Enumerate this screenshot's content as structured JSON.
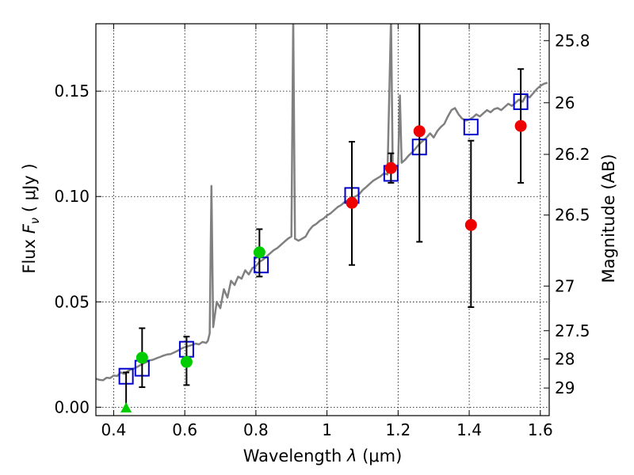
{
  "chart_data": {
    "type": "scatter",
    "title": "",
    "xlabel": {
      "prefix": "Wavelength  ",
      "symbol": "λ",
      "unit": " (μm)"
    },
    "ylabel": {
      "prefix": "Flux  ",
      "symbol": "F",
      "subscript": "ν",
      "unit": "  ( μJy )"
    },
    "ylabel_right": "Magnitude (AB)",
    "xlim": [
      0.35,
      1.625
    ],
    "ylim": [
      -0.004,
      0.182
    ],
    "grid": true,
    "x_ticks": [
      {
        "value": 0.4,
        "label": "0.4"
      },
      {
        "value": 0.6,
        "label": "0.6"
      },
      {
        "value": 0.8,
        "label": "0.8"
      },
      {
        "value": 1.0,
        "label": "1"
      },
      {
        "value": 1.2,
        "label": "1.2"
      },
      {
        "value": 1.4,
        "label": "1.4"
      },
      {
        "value": 1.6,
        "label": "1.6"
      }
    ],
    "y_ticks": [
      {
        "value": 0.0,
        "label": "0.00"
      },
      {
        "value": 0.05,
        "label": "0.05"
      },
      {
        "value": 0.1,
        "label": "0.10"
      },
      {
        "value": 0.15,
        "label": "0.15"
      }
    ],
    "right_ticks": [
      {
        "flux": 0.174,
        "label": "25.8"
      },
      {
        "flux": 0.1445,
        "label": "26"
      },
      {
        "flux": 0.12,
        "label": "26.2"
      },
      {
        "flux": 0.0912,
        "label": "26.5"
      },
      {
        "flux": 0.0575,
        "label": "27"
      },
      {
        "flux": 0.0363,
        "label": "27.5"
      },
      {
        "flux": 0.0229,
        "label": "28"
      },
      {
        "flux": 0.0091,
        "label": "29"
      }
    ],
    "series": [
      {
        "name": "SED template",
        "kind": "line",
        "color": "#808080",
        "points": [
          [
            0.35,
            0.0135
          ],
          [
            0.36,
            0.013
          ],
          [
            0.37,
            0.0128
          ],
          [
            0.38,
            0.014
          ],
          [
            0.39,
            0.0138
          ],
          [
            0.4,
            0.015
          ],
          [
            0.41,
            0.0148
          ],
          [
            0.42,
            0.0165
          ],
          [
            0.43,
            0.0158
          ],
          [
            0.44,
            0.0172
          ],
          [
            0.45,
            0.018
          ],
          [
            0.46,
            0.0185
          ],
          [
            0.47,
            0.0195
          ],
          [
            0.48,
            0.0205
          ],
          [
            0.49,
            0.0212
          ],
          [
            0.5,
            0.0222
          ],
          [
            0.51,
            0.0225
          ],
          [
            0.52,
            0.0232
          ],
          [
            0.53,
            0.0238
          ],
          [
            0.54,
            0.0245
          ],
          [
            0.55,
            0.025
          ],
          [
            0.56,
            0.0252
          ],
          [
            0.57,
            0.026
          ],
          [
            0.58,
            0.0268
          ],
          [
            0.59,
            0.0278
          ],
          [
            0.6,
            0.0285
          ],
          [
            0.61,
            0.029
          ],
          [
            0.62,
            0.0295
          ],
          [
            0.63,
            0.0302
          ],
          [
            0.64,
            0.0298
          ],
          [
            0.65,
            0.031
          ],
          [
            0.66,
            0.0305
          ],
          [
            0.665,
            0.0315
          ],
          [
            0.67,
            0.035
          ],
          [
            0.675,
            0.105
          ],
          [
            0.68,
            0.038
          ],
          [
            0.69,
            0.05
          ],
          [
            0.7,
            0.047
          ],
          [
            0.71,
            0.056
          ],
          [
            0.72,
            0.052
          ],
          [
            0.73,
            0.06
          ],
          [
            0.74,
            0.058
          ],
          [
            0.75,
            0.062
          ],
          [
            0.76,
            0.061
          ],
          [
            0.77,
            0.065
          ],
          [
            0.78,
            0.063
          ],
          [
            0.79,
            0.066
          ],
          [
            0.8,
            0.067
          ],
          [
            0.81,
            0.069
          ],
          [
            0.82,
            0.07
          ],
          [
            0.83,
            0.0715
          ],
          [
            0.84,
            0.073
          ],
          [
            0.85,
            0.0745
          ],
          [
            0.86,
            0.0755
          ],
          [
            0.87,
            0.077
          ],
          [
            0.88,
            0.0785
          ],
          [
            0.89,
            0.08
          ],
          [
            0.9,
            0.081
          ],
          [
            0.905,
            0.185
          ],
          [
            0.91,
            0.08
          ],
          [
            0.92,
            0.079
          ],
          [
            0.93,
            0.08
          ],
          [
            0.94,
            0.081
          ],
          [
            0.95,
            0.084
          ],
          [
            0.96,
            0.086
          ],
          [
            0.97,
            0.087
          ],
          [
            0.98,
            0.0885
          ],
          [
            0.99,
            0.0895
          ],
          [
            1.0,
            0.091
          ],
          [
            1.01,
            0.092
          ],
          [
            1.02,
            0.0935
          ],
          [
            1.03,
            0.095
          ],
          [
            1.04,
            0.096
          ],
          [
            1.05,
            0.0975
          ],
          [
            1.06,
            0.098
          ],
          [
            1.07,
            0.099
          ],
          [
            1.08,
            0.1
          ],
          [
            1.09,
            0.101
          ],
          [
            1.1,
            0.103
          ],
          [
            1.11,
            0.1045
          ],
          [
            1.12,
            0.106
          ],
          [
            1.13,
            0.1075
          ],
          [
            1.14,
            0.1085
          ],
          [
            1.15,
            0.1095
          ],
          [
            1.16,
            0.111
          ],
          [
            1.17,
            0.1105
          ],
          [
            1.18,
            0.185
          ],
          [
            1.185,
            0.112
          ],
          [
            1.19,
            0.113
          ],
          [
            1.2,
            0.115
          ],
          [
            1.205,
            0.148
          ],
          [
            1.21,
            0.116
          ],
          [
            1.22,
            0.1175
          ],
          [
            1.23,
            0.1195
          ],
          [
            1.24,
            0.121
          ],
          [
            1.25,
            0.123
          ],
          [
            1.26,
            0.125
          ],
          [
            1.27,
            0.1265
          ],
          [
            1.28,
            0.128
          ],
          [
            1.29,
            0.13
          ],
          [
            1.3,
            0.128
          ],
          [
            1.31,
            0.131
          ],
          [
            1.32,
            0.133
          ],
          [
            1.33,
            0.1345
          ],
          [
            1.34,
            0.138
          ],
          [
            1.35,
            0.141
          ],
          [
            1.36,
            0.142
          ],
          [
            1.37,
            0.139
          ],
          [
            1.38,
            0.137
          ],
          [
            1.39,
            0.136
          ],
          [
            1.4,
            0.1365
          ],
          [
            1.41,
            0.1375
          ],
          [
            1.42,
            0.139
          ],
          [
            1.43,
            0.138
          ],
          [
            1.44,
            0.1395
          ],
          [
            1.45,
            0.141
          ],
          [
            1.46,
            0.14
          ],
          [
            1.47,
            0.1415
          ],
          [
            1.48,
            0.142
          ],
          [
            1.49,
            0.141
          ],
          [
            1.5,
            0.1425
          ],
          [
            1.51,
            0.144
          ],
          [
            1.52,
            0.143
          ],
          [
            1.53,
            0.1445
          ],
          [
            1.54,
            0.146
          ],
          [
            1.55,
            0.145
          ],
          [
            1.56,
            0.148
          ],
          [
            1.57,
            0.147
          ],
          [
            1.58,
            0.149
          ],
          [
            1.59,
            0.151
          ],
          [
            1.6,
            0.1525
          ],
          [
            1.61,
            0.1535
          ],
          [
            1.62,
            0.154
          ]
        ]
      },
      {
        "name": "model photometry",
        "kind": "square",
        "color": "#0000cc",
        "points": [
          [
            0.435,
            0.0147
          ],
          [
            0.48,
            0.0185
          ],
          [
            0.605,
            0.0275
          ],
          [
            0.815,
            0.0675
          ],
          [
            1.07,
            0.1005
          ],
          [
            1.18,
            0.111
          ],
          [
            1.26,
            0.1235
          ],
          [
            1.405,
            0.133
          ],
          [
            1.545,
            0.145
          ]
        ]
      },
      {
        "name": "observed (green)",
        "kind": "circle",
        "color": "#00cc00",
        "points": [
          {
            "x": 0.48,
            "y": 0.0235,
            "err_lo": 0.0095,
            "err_hi": 0.0375
          },
          {
            "x": 0.605,
            "y": 0.0215,
            "err_lo": 0.0105,
            "err_hi": 0.0335
          },
          {
            "x": 0.81,
            "y": 0.0735,
            "err_lo": 0.062,
            "err_hi": 0.0845
          }
        ]
      },
      {
        "name": "upper limit (green)",
        "kind": "triangle",
        "color": "#00cc00",
        "points": [
          {
            "x": 0.435,
            "y": -0.001,
            "err_lo": -0.001,
            "err_hi": 0.0165
          }
        ]
      },
      {
        "name": "observed (red)",
        "kind": "circle",
        "color": "#ee0000",
        "points": [
          {
            "x": 1.07,
            "y": 0.097,
            "err_lo": 0.0675,
            "err_hi": 0.126
          },
          {
            "x": 1.18,
            "y": 0.1135,
            "err_lo": 0.1065,
            "err_hi": 0.1205
          },
          {
            "x": 1.26,
            "y": 0.131,
            "err_lo": 0.0785,
            "err_hi": 0.184
          },
          {
            "x": 1.405,
            "y": 0.0865,
            "err_lo": 0.0475,
            "err_hi": 0.1265
          },
          {
            "x": 1.545,
            "y": 0.1335,
            "err_lo": 0.1065,
            "err_hi": 0.1605
          }
        ]
      }
    ]
  }
}
